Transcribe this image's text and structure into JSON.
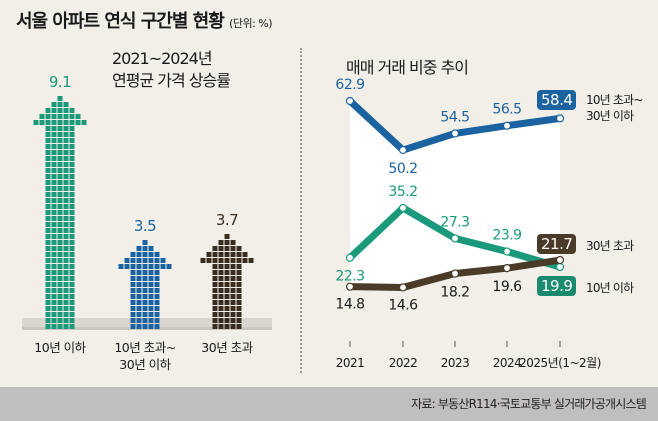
{
  "title": "서울 아파트 연식 구간별 현황",
  "unit": "(단위: %)",
  "source": "자료: 부동산R114·국토교통부 실거래가공개시스템",
  "chart_data": [
    {
      "type": "bar",
      "title_line1": "2021~2024년",
      "title_line2": "연평균 가격 상승률",
      "categories": [
        "10년 이하",
        "10년 초과~\n30년 이하",
        "30년 초과"
      ],
      "category_lines": [
        [
          "10년 이하"
        ],
        [
          "10년 초과~",
          "30년 이하"
        ],
        [
          "30년 초과"
        ]
      ],
      "values": [
        9.1,
        3.5,
        3.7
      ],
      "value_labels": [
        "9.1",
        "3.5",
        "3.7"
      ],
      "colors": [
        "#1a9a7a",
        "#1b63a0",
        "#3a2c1f"
      ],
      "ylim": [
        0,
        9.1
      ]
    },
    {
      "type": "line",
      "title": "매매 거래 비중 추이",
      "x": [
        "2021",
        "2022",
        "2023",
        "2024",
        "2025년(1~2월)"
      ],
      "series": [
        {
          "name": "10년 초과~ 30년 이하",
          "name_lines": [
            "10년 초과~",
            "30년 이하"
          ],
          "values": [
            62.9,
            50.2,
            54.5,
            56.5,
            58.4
          ],
          "labels": [
            "62.9",
            "50.2",
            "54.5",
            "56.5",
            "58.4"
          ],
          "color": "#1b63a0"
        },
        {
          "name": "10년 이하",
          "name_lines": [
            "10년 이하"
          ],
          "values": [
            22.3,
            35.2,
            27.3,
            23.9,
            19.9
          ],
          "labels": [
            "22.3",
            "35.2",
            "27.3",
            "23.9",
            "19.9"
          ],
          "color": "#1a9a7a"
        },
        {
          "name": "30년 초과",
          "name_lines": [
            "30년 초과"
          ],
          "values": [
            14.8,
            14.6,
            18.2,
            19.6,
            21.7
          ],
          "labels": [
            "14.8",
            "14.6",
            "18.2",
            "19.6",
            "21.7"
          ],
          "color": "#4a3a28"
        }
      ],
      "ylim": [
        14.6,
        62.9
      ],
      "grid": false
    }
  ]
}
